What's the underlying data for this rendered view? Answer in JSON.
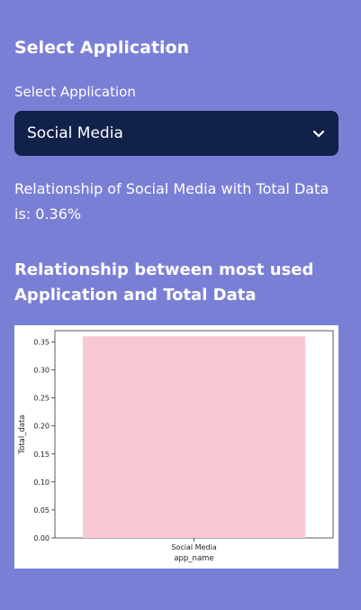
{
  "sidebar": {
    "section_title": "Select Application",
    "field_label": "Select Application",
    "selected_value": "Social Media",
    "result_text": "Relationship of Social Media with Total Data is: 0.36%",
    "chart_heading": "Relationship between most used Application and Total Data"
  },
  "colors": {
    "background": "#7a7fd6",
    "select_background": "#10214a",
    "bar_fill": "#f7c8d3"
  },
  "icons": {
    "select_arrow": "chevron-down-icon"
  },
  "chart_data": {
    "type": "bar",
    "categories": [
      "Social Media"
    ],
    "values": [
      0.36
    ],
    "title": "",
    "xlabel": "app_name",
    "ylabel": "Total_data",
    "ylim": [
      0,
      0.37
    ],
    "yticks": [
      "0.00",
      "0.05",
      "0.10",
      "0.15",
      "0.20",
      "0.25",
      "0.30",
      "0.35"
    ],
    "grid": false
  }
}
